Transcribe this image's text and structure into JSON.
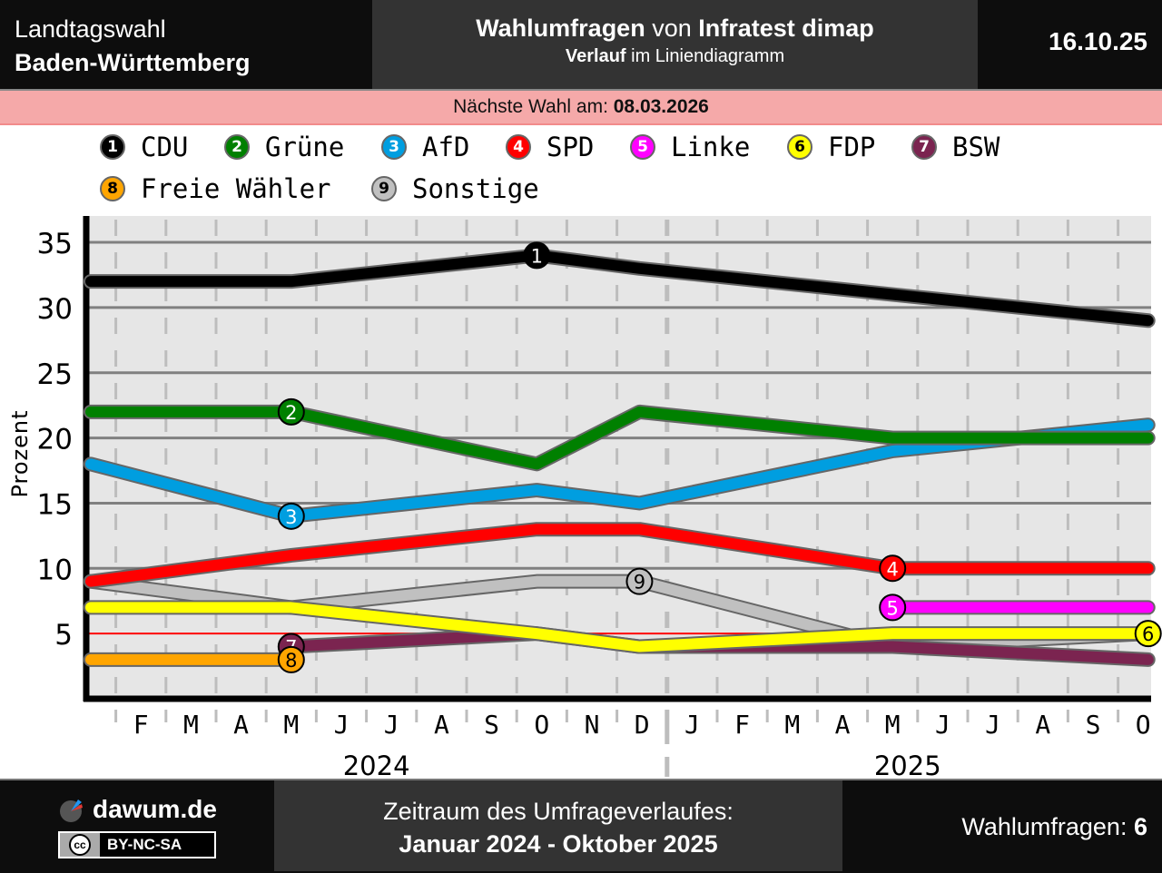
{
  "header": {
    "election_type": "Landtagswahl",
    "region": "Baden-Württemberg",
    "title_bold1": "Wahlumfragen",
    "title_mid": " von ",
    "title_bold2": "Infratest dimap",
    "subtitle_bold": "Verlauf",
    "subtitle_rest": " im Liniendiagramm",
    "date": "16.10.25"
  },
  "next_election": {
    "label": "Nächste Wahl am: ",
    "date": "08.03.2026"
  },
  "footer": {
    "brand": "dawum.de",
    "license": "BY-NC-SA",
    "license_icon": "cc",
    "period_label": "Zeitraum des Umfrageverlaufes:",
    "period": "Januar 2024 - Oktober 2025",
    "count_label": "Wahlumfragen: ",
    "count": "6"
  },
  "chart_data": {
    "type": "line",
    "title": "Wahlumfragen von Infratest dimap – Verlauf im Liniendiagramm",
    "xlabel": "",
    "ylabel": "Prozent",
    "ylim": [
      0,
      37
    ],
    "yticks": [
      5,
      10,
      15,
      20,
      25,
      30,
      35
    ],
    "threshold": 5,
    "grid": true,
    "legend_position": "top",
    "x": [
      "2024-01",
      "2024-05",
      "2024-10",
      "2024-12",
      "2025-05",
      "2025-10"
    ],
    "x_month_index": [
      0,
      4,
      8.9,
      10.95,
      16,
      21.1
    ],
    "month_ticks": [
      "F",
      "M",
      "A",
      "M",
      "J",
      "J",
      "A",
      "S",
      "O",
      "N",
      "D",
      "J",
      "F",
      "M",
      "A",
      "M",
      "J",
      "J",
      "A",
      "S",
      "O"
    ],
    "year_labels": [
      {
        "label": "2024",
        "month_index": 5.7
      },
      {
        "label": "2025",
        "month_index": 16.3
      }
    ],
    "series": [
      {
        "num": "1",
        "name": "CDU",
        "color": "#000000",
        "text": "#ffffff",
        "values": [
          32,
          32,
          34,
          33,
          31,
          29
        ],
        "marker_index": 2
      },
      {
        "num": "2",
        "name": "Grüne",
        "color": "#008000",
        "text": "#ffffff",
        "values": [
          22,
          22,
          18,
          22,
          20,
          20
        ],
        "marker_index": 1
      },
      {
        "num": "3",
        "name": "AfD",
        "color": "#009ee0",
        "text": "#ffffff",
        "values": [
          18,
          14,
          16,
          15,
          19,
          21
        ],
        "marker_index": 1
      },
      {
        "num": "4",
        "name": "SPD",
        "color": "#ff0000",
        "text": "#ffffff",
        "values": [
          9,
          11,
          13,
          13,
          10,
          10
        ],
        "marker_index": 4
      },
      {
        "num": "5",
        "name": "Linke",
        "color": "#ff00ff",
        "text": "#ffffff",
        "values": [
          null,
          null,
          null,
          null,
          7,
          7
        ],
        "marker_index": 4
      },
      {
        "num": "6",
        "name": "FDP",
        "color": "#ffff00",
        "text": "#000000",
        "values": [
          7,
          7,
          5,
          4,
          5,
          5
        ],
        "marker_index": 5
      },
      {
        "num": "7",
        "name": "BSW",
        "color": "#7b2450",
        "text": "#ffffff",
        "values": [
          null,
          4,
          5,
          4,
          4,
          3
        ],
        "marker_index": 1
      },
      {
        "num": "8",
        "name": "Freie Wähler",
        "color": "#ffa500",
        "text": "#000000",
        "values": [
          3,
          3,
          null,
          null,
          null,
          null
        ],
        "marker_index": 1
      },
      {
        "num": "9",
        "name": "Sonstige",
        "color": "#c0c0c0",
        "text": "#000000",
        "values": [
          9,
          7,
          9,
          9,
          4,
          5
        ],
        "marker_index": 3
      }
    ]
  }
}
